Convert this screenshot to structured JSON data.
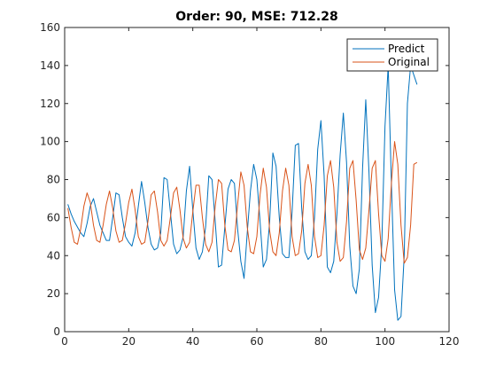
{
  "chart_data": {
    "type": "line",
    "title": "Order: 90, MSE: 712.28",
    "xlabel": "",
    "ylabel": "",
    "xlim": [
      0,
      120
    ],
    "ylim": [
      0,
      160
    ],
    "xticks": [
      0,
      20,
      40,
      60,
      80,
      100,
      120
    ],
    "yticks": [
      0,
      20,
      40,
      60,
      80,
      100,
      120,
      140,
      160
    ],
    "grid": false,
    "legend_position": "top-right",
    "series": [
      {
        "name": "Predict",
        "color": "#0072BD",
        "x": [
          1,
          2,
          3,
          4,
          5,
          6,
          7,
          8,
          9,
          10,
          11,
          12,
          13,
          14,
          15,
          16,
          17,
          18,
          19,
          20,
          21,
          22,
          23,
          24,
          25,
          26,
          27,
          28,
          29,
          30,
          31,
          32,
          33,
          34,
          35,
          36,
          37,
          38,
          39,
          40,
          41,
          42,
          43,
          44,
          45,
          46,
          47,
          48,
          49,
          50,
          51,
          52,
          53,
          54,
          55,
          56,
          57,
          58,
          59,
          60,
          61,
          62,
          63,
          64,
          65,
          66,
          67,
          68,
          69,
          70,
          71,
          72,
          73,
          74,
          75,
          76,
          77,
          78,
          79,
          80,
          81,
          82,
          83,
          84,
          85,
          86,
          87,
          88,
          89,
          90,
          91,
          92,
          93,
          94,
          95,
          96,
          97,
          98,
          99,
          100,
          101,
          102,
          103,
          104,
          105,
          106,
          107,
          108,
          109,
          110
        ],
        "y": [
          67,
          62,
          58,
          55,
          52,
          50,
          57,
          66,
          70,
          63,
          56,
          52,
          48,
          48,
          60,
          73,
          72,
          60,
          50,
          47,
          45,
          52,
          66,
          79,
          68,
          55,
          46,
          43,
          44,
          52,
          81,
          80,
          63,
          46,
          41,
          43,
          50,
          74,
          87,
          64,
          44,
          38,
          42,
          55,
          82,
          80,
          58,
          34,
          35,
          55,
          75,
          80,
          78,
          54,
          37,
          28,
          52,
          74,
          88,
          80,
          58,
          34,
          38,
          58,
          94,
          87,
          60,
          41,
          39,
          39,
          63,
          98,
          99,
          65,
          42,
          38,
          40,
          60,
          96,
          111,
          82,
          34,
          31,
          37,
          62,
          93,
          115,
          89,
          45,
          24,
          20,
          33,
          86,
          122,
          84,
          35,
          10,
          18,
          46,
          108,
          140,
          78,
          22,
          6,
          8,
          40,
          120,
          140,
          135,
          130
        ]
      },
      {
        "name": "Original",
        "color": "#D95319",
        "x": [
          1,
          2,
          3,
          4,
          5,
          6,
          7,
          8,
          9,
          10,
          11,
          12,
          13,
          14,
          15,
          16,
          17,
          18,
          19,
          20,
          21,
          22,
          23,
          24,
          25,
          26,
          27,
          28,
          29,
          30,
          31,
          32,
          33,
          34,
          35,
          36,
          37,
          38,
          39,
          40,
          41,
          42,
          43,
          44,
          45,
          46,
          47,
          48,
          49,
          50,
          51,
          52,
          53,
          54,
          55,
          56,
          57,
          58,
          59,
          60,
          61,
          62,
          63,
          64,
          65,
          66,
          67,
          68,
          69,
          70,
          71,
          72,
          73,
          74,
          75,
          76,
          77,
          78,
          79,
          80,
          81,
          82,
          83,
          84,
          85,
          86,
          87,
          88,
          89,
          90,
          91,
          92,
          93,
          94,
          95,
          96,
          97,
          98,
          99,
          100,
          101,
          102,
          103,
          104,
          105,
          106,
          107,
          108,
          109,
          110
        ],
        "y": [
          65,
          55,
          47,
          46,
          54,
          66,
          73,
          68,
          56,
          48,
          47,
          56,
          67,
          74,
          65,
          53,
          47,
          48,
          57,
          68,
          75,
          64,
          50,
          46,
          47,
          58,
          72,
          74,
          63,
          48,
          45,
          48,
          60,
          73,
          76,
          64,
          49,
          44,
          47,
          63,
          77,
          77,
          60,
          46,
          42,
          47,
          66,
          80,
          78,
          56,
          43,
          42,
          48,
          67,
          84,
          77,
          55,
          42,
          41,
          50,
          72,
          86,
          76,
          53,
          42,
          40,
          52,
          74,
          86,
          77,
          50,
          40,
          41,
          53,
          78,
          88,
          77,
          50,
          39,
          40,
          56,
          82,
          90,
          76,
          47,
          37,
          39,
          58,
          86,
          90,
          69,
          43,
          38,
          44,
          64,
          86,
          90,
          62,
          40,
          37,
          49,
          78,
          100,
          88,
          56,
          36,
          39,
          56,
          88,
          89
        ]
      }
    ]
  }
}
